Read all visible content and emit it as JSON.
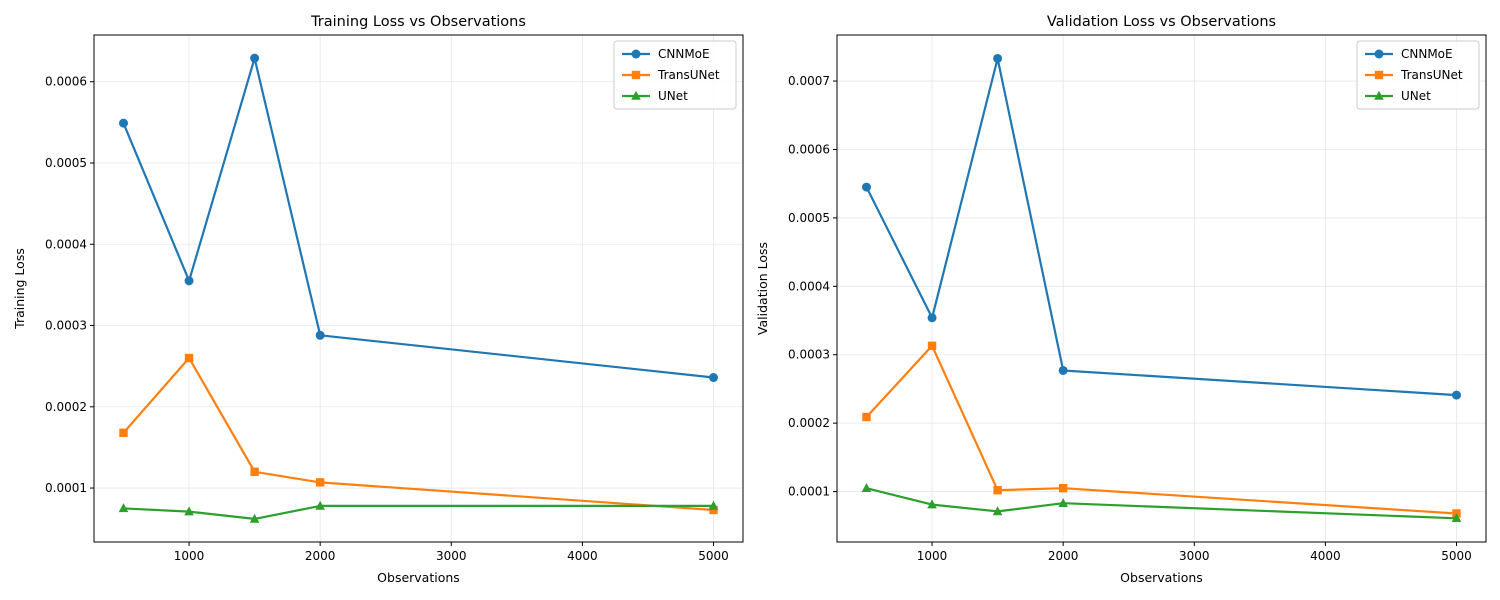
{
  "colors": {
    "CNNMoE": "#1f77b4",
    "TransUNet": "#ff7f0e",
    "UNet": "#2ca02c",
    "grid": "#e6e6e6"
  },
  "chart_data": [
    {
      "type": "line",
      "title": "Training Loss vs Observations",
      "xlabel": "Observations",
      "ylabel": "Training Loss",
      "grid": true,
      "legend": "top-right",
      "xlim": [
        275,
        5225
      ],
      "ylim": [
        3.36e-05,
        0.0006575
      ],
      "xticks": [
        1000,
        2000,
        3000,
        4000,
        5000
      ],
      "xtick_labels": [
        "1000",
        "2000",
        "3000",
        "4000",
        "5000"
      ],
      "yticks": [
        0.0001,
        0.0002,
        0.0003,
        0.0004,
        0.0005,
        0.0006
      ],
      "ytick_labels": [
        "0.0001",
        "0.0002",
        "0.0003",
        "0.0004",
        "0.0005",
        "0.0006"
      ],
      "x": [
        500,
        1000,
        1500,
        2000,
        5000
      ],
      "series": [
        {
          "name": "CNNMoE",
          "marker": "circle",
          "values": [
            0.000549,
            0.000355,
            0.000629,
            0.000288,
            0.000236
          ]
        },
        {
          "name": "TransUNet",
          "marker": "square",
          "values": [
            0.000168,
            0.00026,
            0.00012,
            0.000107,
            7.3e-05
          ]
        },
        {
          "name": "UNet",
          "marker": "triangle",
          "values": [
            7.5e-05,
            7.1e-05,
            6.2e-05,
            7.8e-05,
            7.8e-05
          ]
        }
      ]
    },
    {
      "type": "line",
      "title": "Validation Loss vs Observations",
      "xlabel": "Observations",
      "ylabel": "Validation Loss",
      "grid": true,
      "legend": "top-right",
      "xlim": [
        275,
        5225
      ],
      "ylim": [
        2.63e-05,
        0.0007673
      ],
      "xticks": [
        1000,
        2000,
        3000,
        4000,
        5000
      ],
      "xtick_labels": [
        "1000",
        "2000",
        "3000",
        "4000",
        "5000"
      ],
      "yticks": [
        0.0001,
        0.0002,
        0.0003,
        0.0004,
        0.0005,
        0.0006,
        0.0007
      ],
      "ytick_labels": [
        "0.0001",
        "0.0002",
        "0.0003",
        "0.0004",
        "0.0005",
        "0.0006",
        "0.0007"
      ],
      "x": [
        500,
        1000,
        1500,
        2000,
        5000
      ],
      "series": [
        {
          "name": "CNNMoE",
          "marker": "circle",
          "values": [
            0.000545,
            0.000354,
            0.000733,
            0.000277,
            0.000241
          ]
        },
        {
          "name": "TransUNet",
          "marker": "square",
          "values": [
            0.000209,
            0.000313,
            0.000102,
            0.000105,
            6.8e-05
          ]
        },
        {
          "name": "UNet",
          "marker": "triangle",
          "values": [
            0.000105,
            8.1e-05,
            7.1e-05,
            8.3e-05,
            6.1e-05
          ]
        }
      ]
    }
  ]
}
